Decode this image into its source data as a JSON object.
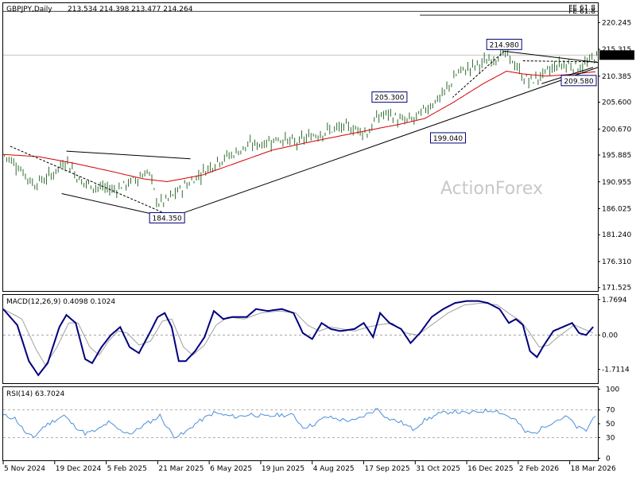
{
  "header": {
    "symbol": "GBPJPY,Daily",
    "ohlc": "213.534 214.398 213.477 214.264"
  },
  "watermark": "ActionForex",
  "price_badge": "214.264",
  "macd": {
    "title": "MACD(12,26,9) 0.4098 0.1024"
  },
  "rsi": {
    "title": "RSI(14) 63.7024"
  },
  "fe_labels": [
    "FE 61.8",
    "FE 61.8"
  ],
  "annotations": [
    {
      "text": "214.980",
      "x": 214,
      "y": 214.98
    },
    {
      "text": "205.300",
      "x": 165,
      "y": 205.3
    },
    {
      "text": "199.040",
      "x": 190,
      "y": 199.04
    },
    {
      "text": "209.580",
      "x": 250,
      "y": 209.58
    },
    {
      "text": "184.350",
      "x": 70,
      "y": 184.35
    }
  ],
  "colors": {
    "ma": "#d40000",
    "macd": "#00007f",
    "signal": "#a0a0a0",
    "rsi": "#4a90d9",
    "candle": "#2f6b2f",
    "label_border": "#00007f"
  },
  "chart_data": [
    {
      "type": "candlestick",
      "title": "GBPJPY,Daily",
      "x_ticks": [
        {
          "label": "5 Nov 2024",
          "x": 0
        },
        {
          "label": "19 Dec 2024",
          "x": 22
        },
        {
          "label": "5 Feb 2025",
          "x": 44
        },
        {
          "label": "21 Mar 2025",
          "x": 66
        },
        {
          "label": "6 May 2025",
          "x": 88
        },
        {
          "label": "19 Jun 2025",
          "x": 110
        },
        {
          "label": "4 Aug 2025",
          "x": 132
        },
        {
          "label": "17 Sep 2025",
          "x": 154
        },
        {
          "label": "31 Oct 2025",
          "x": 176
        },
        {
          "label": "16 Dec 2025",
          "x": 198
        },
        {
          "label": "2 Feb 2026",
          "x": 220
        },
        {
          "label": "18 Mar 2026",
          "x": 242
        }
      ],
      "y_ticks": [
        "220.245",
        "215.315",
        "210.385",
        "205.600",
        "200.670",
        "195.885",
        "190.955",
        "186.025",
        "181.240",
        "176.310",
        "171.525"
      ],
      "y_tick_values": [
        220.245,
        215.315,
        210.385,
        205.6,
        200.67,
        195.885,
        190.955,
        186.025,
        181.24,
        176.31,
        171.525
      ],
      "ylim": [
        170.9,
        223.8
      ],
      "xlim": [
        0,
        254
      ],
      "price_key": [
        [
          0,
          196
        ],
        [
          6,
          194
        ],
        [
          13,
          190.5
        ],
        [
          20,
          192
        ],
        [
          27,
          195
        ],
        [
          33,
          191
        ],
        [
          40,
          190
        ],
        [
          47,
          189.5
        ],
        [
          55,
          191
        ],
        [
          62,
          193
        ],
        [
          66,
          187
        ],
        [
          70,
          187.5
        ],
        [
          74,
          189
        ],
        [
          80,
          191
        ],
        [
          86,
          193
        ],
        [
          92,
          195
        ],
        [
          98,
          196
        ],
        [
          104,
          197.5
        ],
        [
          110,
          198
        ],
        [
          118,
          199
        ],
        [
          125,
          198
        ],
        [
          132,
          199.5
        ],
        [
          140,
          200.5
        ],
        [
          148,
          201
        ],
        [
          156,
          200
        ],
        [
          160,
          203
        ],
        [
          165,
          203.5
        ],
        [
          170,
          202
        ],
        [
          176,
          202.5
        ],
        [
          182,
          205
        ],
        [
          188,
          207
        ],
        [
          194,
          211
        ],
        [
          200,
          212
        ],
        [
          206,
          213
        ],
        [
          211,
          214
        ],
        [
          214,
          214.5
        ],
        [
          218,
          213
        ],
        [
          222,
          210
        ],
        [
          226,
          209.5
        ],
        [
          232,
          211
        ],
        [
          237,
          212.5
        ],
        [
          242,
          212.5
        ],
        [
          247,
          212
        ],
        [
          250,
          212.8
        ],
        [
          253,
          214.26
        ]
      ],
      "ma_key": [
        [
          0,
          196
        ],
        [
          15,
          195.6
        ],
        [
          30,
          194.4
        ],
        [
          45,
          193
        ],
        [
          60,
          191.5
        ],
        [
          70,
          191
        ],
        [
          85,
          192.2
        ],
        [
          100,
          194.5
        ],
        [
          115,
          196.8
        ],
        [
          130,
          198.2
        ],
        [
          145,
          199.5
        ],
        [
          158,
          200.6
        ],
        [
          170,
          201.6
        ],
        [
          180,
          202.6
        ],
        [
          192,
          205.5
        ],
        [
          205,
          209
        ],
        [
          215,
          211.3
        ],
        [
          222,
          210.8
        ],
        [
          232,
          210.4
        ],
        [
          242,
          210.7
        ],
        [
          253,
          211.2
        ]
      ],
      "lines": [
        {
          "from": [
            71,
            184.35
          ],
          "to": [
            254,
            212.0
          ],
          "style": "solid"
        },
        {
          "from": [
            27,
            196.6
          ],
          "to": [
            80,
            195.2
          ],
          "style": "solid"
        },
        {
          "from": [
            25,
            188.8
          ],
          "to": [
            71,
            184.35
          ],
          "style": "solid"
        },
        {
          "from": [
            214,
            214.98
          ],
          "to": [
            254,
            212.9
          ],
          "style": "solid"
        },
        {
          "from": [
            214,
            214.98
          ],
          "to": [
            192,
            206.5
          ],
          "style": "dashed"
        },
        {
          "from": [
            3,
            197.5
          ],
          "to": [
            71,
            184.8
          ],
          "style": "dashed"
        },
        {
          "from": [
            222,
            213.2
          ],
          "to": [
            254,
            213.0
          ],
          "style": "dashed"
        },
        {
          "from": [
            230,
            209.0
          ],
          "to": [
            252,
            212.0
          ],
          "style": "solid"
        }
      ],
      "fe_levels": [
        {
          "value": 222.3,
          "x_from": 0
        },
        {
          "value": 221.6,
          "x_from": 178
        }
      ],
      "hline": 214.264
    },
    {
      "type": "line",
      "title": "MACD(12,26,9) 0.4098 0.1024",
      "y_ticks": [
        "1.7694",
        "0.00",
        "-1.7114"
      ],
      "y_tick_values": [
        1.7694,
        0,
        -1.7114
      ],
      "ylim": [
        -2.4,
        2.0
      ],
      "zero_line": 0,
      "macd_key": [
        [
          0,
          1.3
        ],
        [
          6,
          0.5
        ],
        [
          11,
          -1.3
        ],
        [
          15,
          -2.0
        ],
        [
          19,
          -1.4
        ],
        [
          24,
          0.4
        ],
        [
          27,
          1.0
        ],
        [
          31,
          0.6
        ],
        [
          35,
          -1.2
        ],
        [
          38,
          -1.4
        ],
        [
          42,
          -0.6
        ],
        [
          46,
          0.0
        ],
        [
          50,
          0.4
        ],
        [
          54,
          -0.6
        ],
        [
          58,
          -0.9
        ],
        [
          63,
          0.2
        ],
        [
          66,
          0.9
        ],
        [
          69,
          1.1
        ],
        [
          72,
          0.4
        ],
        [
          75,
          -1.3
        ],
        [
          78,
          -1.3
        ],
        [
          82,
          -0.8
        ],
        [
          86,
          -0.1
        ],
        [
          90,
          1.2
        ],
        [
          94,
          0.8
        ],
        [
          98,
          0.9
        ],
        [
          104,
          0.9
        ],
        [
          108,
          1.3
        ],
        [
          113,
          1.2
        ],
        [
          119,
          1.3
        ],
        [
          124,
          1.1
        ],
        [
          128,
          0.1
        ],
        [
          132,
          -0.2
        ],
        [
          136,
          0.6
        ],
        [
          140,
          0.3
        ],
        [
          144,
          0.2
        ],
        [
          150,
          0.3
        ],
        [
          154,
          0.6
        ],
        [
          158,
          -0.1
        ],
        [
          161,
          1.1
        ],
        [
          165,
          0.6
        ],
        [
          170,
          0.3
        ],
        [
          174,
          -0.4
        ],
        [
          178,
          0.1
        ],
        [
          183,
          0.9
        ],
        [
          188,
          1.3
        ],
        [
          193,
          1.6
        ],
        [
          198,
          1.7
        ],
        [
          203,
          1.7
        ],
        [
          207,
          1.6
        ],
        [
          212,
          1.3
        ],
        [
          216,
          0.6
        ],
        [
          219,
          0.8
        ],
        [
          222,
          0.5
        ],
        [
          225,
          -0.8
        ],
        [
          228,
          -1.1
        ],
        [
          231,
          -0.5
        ],
        [
          235,
          0.2
        ],
        [
          239,
          0.4
        ],
        [
          243,
          0.6
        ],
        [
          246,
          0.1
        ],
        [
          249,
          0.0
        ],
        [
          252,
          0.41
        ]
      ],
      "signal_key": [
        [
          0,
          1.3
        ],
        [
          8,
          0.8
        ],
        [
          14,
          -0.7
        ],
        [
          18,
          -1.5
        ],
        [
          23,
          -0.6
        ],
        [
          28,
          0.6
        ],
        [
          32,
          0.6
        ],
        [
          37,
          -0.6
        ],
        [
          41,
          -1.0
        ],
        [
          45,
          -0.3
        ],
        [
          49,
          0.2
        ],
        [
          53,
          0.1
        ],
        [
          58,
          -0.5
        ],
        [
          63,
          -0.3
        ],
        [
          68,
          0.7
        ],
        [
          72,
          0.8
        ],
        [
          77,
          -0.6
        ],
        [
          81,
          -1.0
        ],
        [
          86,
          -0.5
        ],
        [
          91,
          0.5
        ],
        [
          96,
          0.9
        ],
        [
          103,
          0.8
        ],
        [
          110,
          1.1
        ],
        [
          118,
          1.2
        ],
        [
          125,
          1.1
        ],
        [
          130,
          0.5
        ],
        [
          135,
          0.2
        ],
        [
          140,
          0.4
        ],
        [
          150,
          0.2
        ],
        [
          156,
          0.4
        ],
        [
          160,
          0.5
        ],
        [
          166,
          0.6
        ],
        [
          172,
          0.1
        ],
        [
          177,
          0.0
        ],
        [
          183,
          0.5
        ],
        [
          190,
          1.1
        ],
        [
          197,
          1.5
        ],
        [
          205,
          1.6
        ],
        [
          211,
          1.5
        ],
        [
          217,
          1.0
        ],
        [
          221,
          0.7
        ],
        [
          225,
          0.1
        ],
        [
          229,
          -0.6
        ],
        [
          233,
          -0.5
        ],
        [
          238,
          0.0
        ],
        [
          244,
          0.5
        ],
        [
          248,
          0.3
        ],
        [
          252,
          0.1
        ]
      ]
    },
    {
      "type": "line",
      "title": "RSI(14) 63.7024",
      "y_ticks": [
        "100",
        "70",
        "50",
        "30",
        "0"
      ],
      "y_tick_values": [
        100,
        70,
        50,
        30,
        0
      ],
      "ylim": [
        -3,
        103
      ],
      "levels": [
        70,
        30
      ],
      "rsi_key": [
        [
          0,
          62
        ],
        [
          5,
          58
        ],
        [
          10,
          35
        ],
        [
          13,
          30
        ],
        [
          17,
          45
        ],
        [
          22,
          55
        ],
        [
          26,
          62
        ],
        [
          30,
          48
        ],
        [
          35,
          36
        ],
        [
          40,
          40
        ],
        [
          45,
          52
        ],
        [
          50,
          40
        ],
        [
          55,
          36
        ],
        [
          60,
          48
        ],
        [
          64,
          55
        ],
        [
          67,
          62
        ],
        [
          70,
          45
        ],
        [
          73,
          32
        ],
        [
          77,
          35
        ],
        [
          82,
          50
        ],
        [
          86,
          58
        ],
        [
          90,
          66
        ],
        [
          95,
          62
        ],
        [
          100,
          60
        ],
        [
          106,
          64
        ],
        [
          112,
          60
        ],
        [
          118,
          63
        ],
        [
          124,
          62
        ],
        [
          128,
          45
        ],
        [
          132,
          48
        ],
        [
          138,
          60
        ],
        [
          144,
          56
        ],
        [
          150,
          54
        ],
        [
          155,
          63
        ],
        [
          160,
          72
        ],
        [
          164,
          58
        ],
        [
          170,
          52
        ],
        [
          175,
          42
        ],
        [
          180,
          55
        ],
        [
          186,
          64
        ],
        [
          192,
          68
        ],
        [
          198,
          65
        ],
        [
          204,
          68
        ],
        [
          210,
          70
        ],
        [
          215,
          62
        ],
        [
          219,
          55
        ],
        [
          223,
          38
        ],
        [
          227,
          36
        ],
        [
          232,
          48
        ],
        [
          237,
          56
        ],
        [
          241,
          60
        ],
        [
          245,
          45
        ],
        [
          249,
          40
        ],
        [
          253,
          63.7
        ]
      ]
    }
  ]
}
